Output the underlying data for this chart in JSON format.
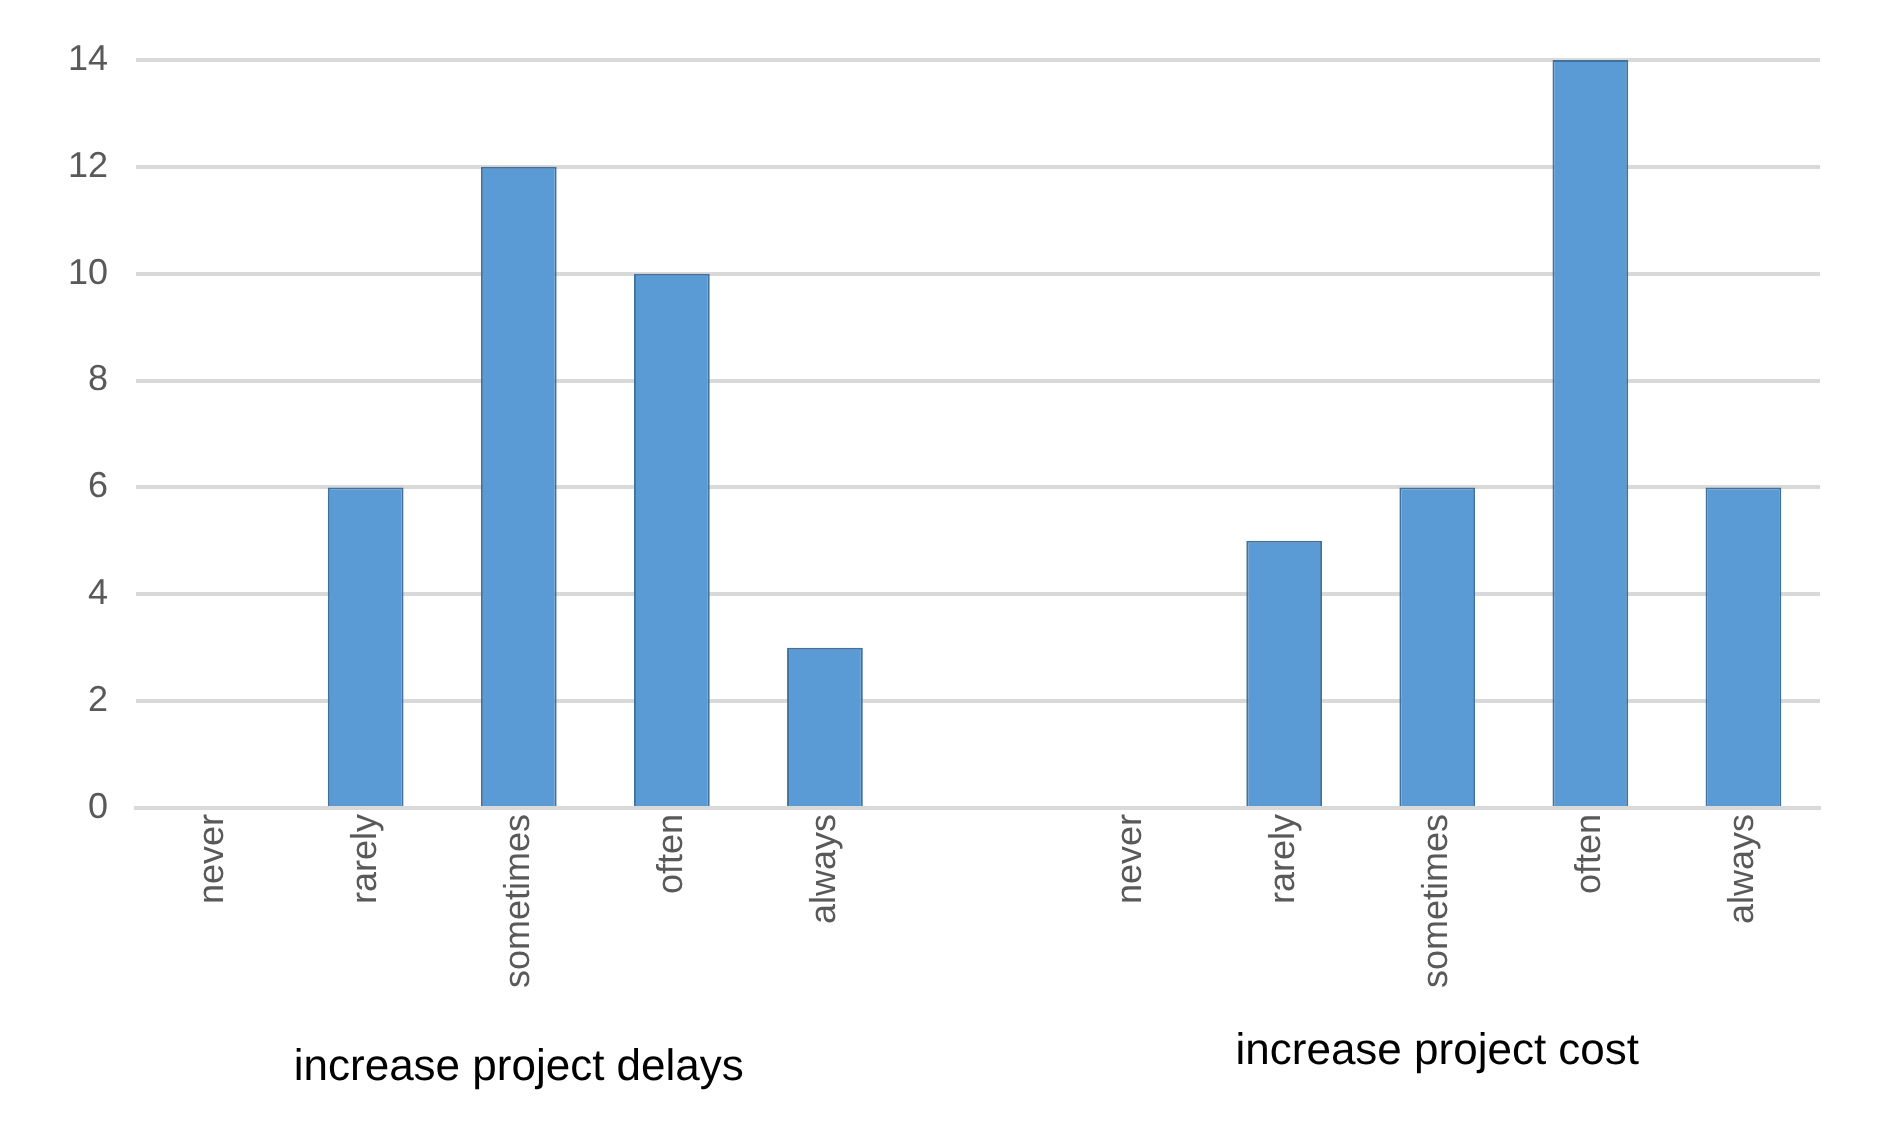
{
  "chart_data": {
    "type": "bar",
    "categories": [
      "never",
      "rarely",
      "sometimes",
      "often",
      "always",
      null,
      "never",
      "rarely",
      "sometimes",
      "often",
      "always"
    ],
    "values": [
      0,
      6,
      12,
      10,
      3,
      null,
      0,
      5,
      6,
      14,
      6
    ],
    "color": "#5b9bd5",
    "ylim": [
      0,
      14
    ],
    "yticks": [
      0,
      2,
      4,
      6,
      8,
      10,
      12,
      14
    ],
    "grid": "y",
    "annotations": [
      "increase project delays",
      "increase project cost"
    ]
  }
}
